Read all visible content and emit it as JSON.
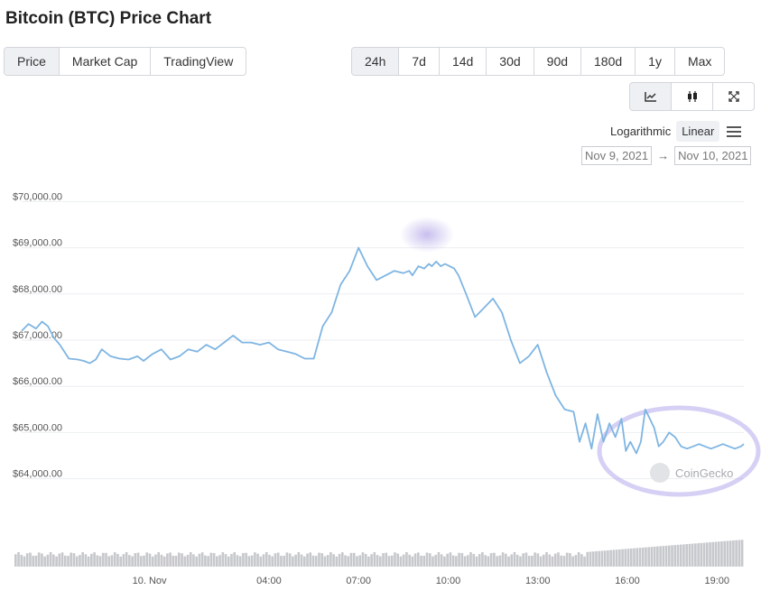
{
  "title": "Bitcoin (BTC) Price Chart",
  "view_tabs": [
    {
      "label": "Price",
      "active": true
    },
    {
      "label": "Market Cap",
      "active": false
    },
    {
      "label": "TradingView",
      "active": false
    }
  ],
  "range_tabs": [
    {
      "label": "24h",
      "active": true
    },
    {
      "label": "7d",
      "active": false
    },
    {
      "label": "14d",
      "active": false
    },
    {
      "label": "30d",
      "active": false
    },
    {
      "label": "90d",
      "active": false
    },
    {
      "label": "180d",
      "active": false
    },
    {
      "label": "1y",
      "active": false
    },
    {
      "label": "Max",
      "active": false
    }
  ],
  "chart_type_buttons": [
    {
      "icon": "line-chart-icon",
      "active": true
    },
    {
      "icon": "candlestick-icon",
      "active": false
    },
    {
      "icon": "fullscreen-icon",
      "active": false
    }
  ],
  "scale": {
    "logarithmic": "Logarithmic",
    "linear": "Linear",
    "active": "linear"
  },
  "date_range": {
    "from": "Nov 9, 2021",
    "arrow": "→",
    "to": "Nov 10, 2021"
  },
  "watermark": "CoinGecko",
  "colors": {
    "line": "#7fb5e2",
    "grid": "#eceef1",
    "volume": "#c6c8cc",
    "highlight": "#9b8be0"
  },
  "chart_data": {
    "type": "line",
    "title": "",
    "xlabel": "",
    "ylabel": "",
    "y_tick_labels": [
      "$64,000.00",
      "$65,000.00",
      "$66,000.00",
      "$67,000.00",
      "$68,000.00",
      "$69,000.00",
      "$70,000.00"
    ],
    "y_ticks": [
      64000,
      65000,
      66000,
      67000,
      68000,
      69000,
      70000
    ],
    "ylim": [
      63700,
      70300
    ],
    "x_tick_labels": [
      "10. Nov",
      "04:00",
      "07:00",
      "10:00",
      "13:00",
      "16:00",
      "19:00"
    ],
    "x_ticks": [
      0,
      4,
      7,
      10,
      13,
      16,
      19
    ],
    "xlim": [
      -4.28,
      19.9
    ],
    "grid": true,
    "series": [
      {
        "x": [
          -4.28,
          -4.05,
          -3.8,
          -3.6,
          -3.4,
          -3.2,
          -3.0,
          -2.7,
          -2.4,
          -2.2,
          -2.0,
          -1.8,
          -1.6,
          -1.3,
          -1.0,
          -0.7,
          -0.4,
          -0.2,
          0.1,
          0.4,
          0.7,
          1.0,
          1.3,
          1.6,
          1.9,
          2.2,
          2.5,
          2.8,
          3.1,
          3.4,
          3.7,
          4.0,
          4.3,
          4.6,
          4.9,
          5.2,
          5.5,
          5.8,
          6.1,
          6.4,
          6.7,
          7.0,
          7.3,
          7.6,
          7.9,
          8.2,
          8.5,
          8.7,
          8.8,
          9.0,
          9.2,
          9.35,
          9.45,
          9.6,
          9.75,
          9.9,
          10.05,
          10.2,
          10.35,
          10.6,
          10.9,
          11.2,
          11.5,
          11.8,
          12.1,
          12.4,
          12.7,
          13.0,
          13.3,
          13.6,
          13.9,
          14.2,
          14.4,
          14.6,
          14.8,
          15.0,
          15.2,
          15.4,
          15.6,
          15.8,
          15.95,
          16.1,
          16.3,
          16.45,
          16.6,
          16.75,
          16.9,
          17.05,
          17.2,
          17.4,
          17.6,
          17.8,
          18.0,
          18.2,
          18.4,
          18.6,
          18.8,
          19.0,
          19.2,
          19.4,
          19.6,
          19.8,
          19.9
        ],
        "values": [
          67200,
          67350,
          67250,
          67400,
          67300,
          67050,
          66900,
          66600,
          66580,
          66550,
          66500,
          66580,
          66800,
          66650,
          66600,
          66580,
          66650,
          66550,
          66700,
          66800,
          66580,
          66650,
          66800,
          66750,
          66900,
          66800,
          66950,
          67100,
          66950,
          66950,
          66900,
          66950,
          66800,
          66750,
          66700,
          66600,
          66600,
          67300,
          67600,
          68200,
          68500,
          69000,
          68600,
          68300,
          68400,
          68500,
          68450,
          68500,
          68400,
          68600,
          68550,
          68650,
          68600,
          68700,
          68600,
          68650,
          68600,
          68550,
          68400,
          68000,
          67500,
          67700,
          67900,
          67600,
          67000,
          66500,
          66650,
          66900,
          66300,
          65800,
          65500,
          65450,
          64800,
          65200,
          64650,
          65400,
          64800,
          65200,
          64900,
          65300,
          64600,
          64800,
          64550,
          64800,
          65500,
          65300,
          65100,
          64700,
          64800,
          65000,
          64900,
          64700,
          64650,
          64700,
          64750,
          64700,
          64650,
          64700,
          64750,
          64700,
          64650,
          64700,
          64750
        ]
      }
    ],
    "volume": {
      "relative_level": 0.4
    }
  }
}
